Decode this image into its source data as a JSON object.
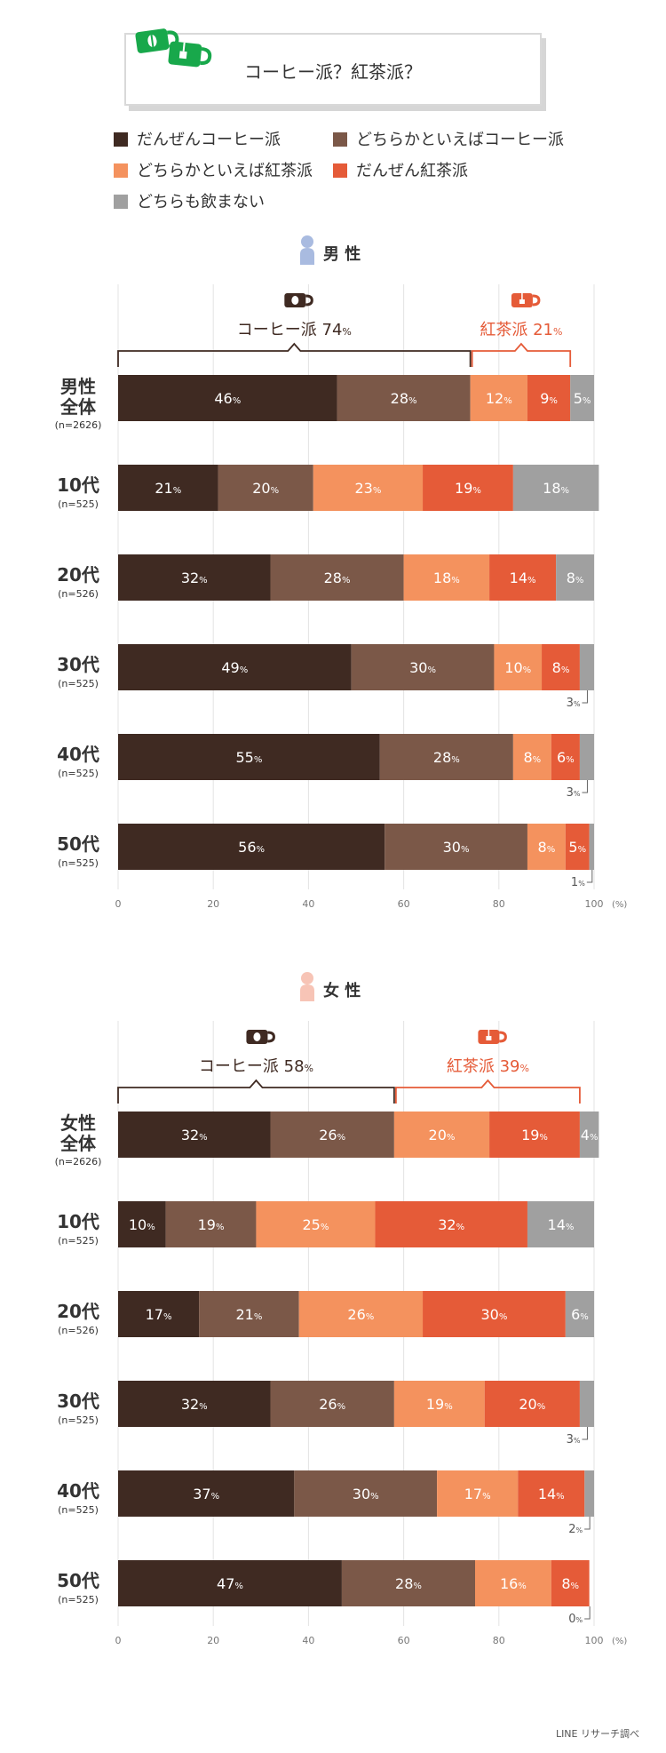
{
  "title": "コーヒー派？紅茶派？",
  "legend": [
    {
      "label": "だんぜんコーヒー派",
      "color": "#3f2a22"
    },
    {
      "label": "どちらかといえばコーヒー派",
      "color": "#7b5848"
    },
    {
      "label": "どちらかといえば紅茶派",
      "color": "#f4925e"
    },
    {
      "label": "だんぜん紅茶派",
      "color": "#e55b38"
    },
    {
      "label": "どちらも飲まない",
      "color": "#a0a0a0"
    }
  ],
  "source": "LINE リサーチ調べ",
  "chart_data": [
    {
      "type": "bar",
      "gender_label": "男 性",
      "coffee_label": "コーヒー派 74%",
      "tea_label": "紅茶派 21%",
      "x_ticks": [
        "0",
        "20",
        "40",
        "60",
        "80",
        "100"
      ],
      "x_unit": "(%)",
      "xlim": [
        0,
        100
      ],
      "rows": [
        {
          "label": [
            "男性",
            "全体"
          ],
          "n": "(n=2626)",
          "values": [
            46,
            28,
            12,
            9,
            5
          ],
          "labels": [
            "46%",
            "28%",
            "12%",
            "9%",
            "5%"
          ]
        },
        {
          "label": [
            "10代"
          ],
          "n": "(n=525)",
          "values": [
            21,
            20,
            23,
            19,
            18
          ],
          "labels": [
            "21%",
            "20%",
            "23%",
            "19%",
            "18%"
          ]
        },
        {
          "label": [
            "20代"
          ],
          "n": "(n=526)",
          "values": [
            32,
            28,
            18,
            14,
            8
          ],
          "labels": [
            "32%",
            "28%",
            "18%",
            "14%",
            "8%"
          ]
        },
        {
          "label": [
            "30代"
          ],
          "n": "(n=525)",
          "values": [
            49,
            30,
            10,
            8,
            3
          ],
          "labels": [
            "49%",
            "30%",
            "10%",
            "8%",
            "3%"
          ]
        },
        {
          "label": [
            "40代"
          ],
          "n": "(n=525)",
          "values": [
            55,
            28,
            8,
            6,
            3
          ],
          "labels": [
            "55%",
            "28%",
            "8%",
            "6%",
            "3%"
          ]
        },
        {
          "label": [
            "50代"
          ],
          "n": "(n=525)",
          "values": [
            56,
            30,
            8,
            5,
            1
          ],
          "labels": [
            "56%",
            "30%",
            "8%",
            "5%",
            "1%"
          ]
        }
      ]
    },
    {
      "type": "bar",
      "gender_label": "女 性",
      "coffee_label": "コーヒー派 58%",
      "tea_label": "紅茶派 39%",
      "x_ticks": [
        "0",
        "20",
        "40",
        "60",
        "80",
        "100"
      ],
      "x_unit": "(%)",
      "xlim": [
        0,
        100
      ],
      "rows": [
        {
          "label": [
            "女性",
            "全体"
          ],
          "n": "(n=2626)",
          "values": [
            32,
            26,
            20,
            19,
            4
          ],
          "labels": [
            "32%",
            "26%",
            "20%",
            "19%",
            "4%"
          ]
        },
        {
          "label": [
            "10代"
          ],
          "n": "(n=525)",
          "values": [
            10,
            19,
            25,
            32,
            14
          ],
          "labels": [
            "10%",
            "19%",
            "25%",
            "32%",
            "14%"
          ]
        },
        {
          "label": [
            "20代"
          ],
          "n": "(n=526)",
          "values": [
            17,
            21,
            26,
            30,
            6
          ],
          "labels": [
            "17%",
            "21%",
            "26%",
            "30%",
            "6%"
          ]
        },
        {
          "label": [
            "30代"
          ],
          "n": "(n=525)",
          "values": [
            32,
            26,
            19,
            20,
            3
          ],
          "labels": [
            "32%",
            "26%",
            "19%",
            "20%",
            "3%"
          ]
        },
        {
          "label": [
            "40代"
          ],
          "n": "(n=525)",
          "values": [
            37,
            30,
            17,
            14,
            2
          ],
          "labels": [
            "37%",
            "30%",
            "17%",
            "14%",
            "2%"
          ]
        },
        {
          "label": [
            "50代"
          ],
          "n": "(n=525)",
          "values": [
            47,
            28,
            16,
            8,
            0
          ],
          "labels": [
            "47%",
            "28%",
            "16%",
            "8%",
            "0%"
          ]
        }
      ]
    }
  ]
}
